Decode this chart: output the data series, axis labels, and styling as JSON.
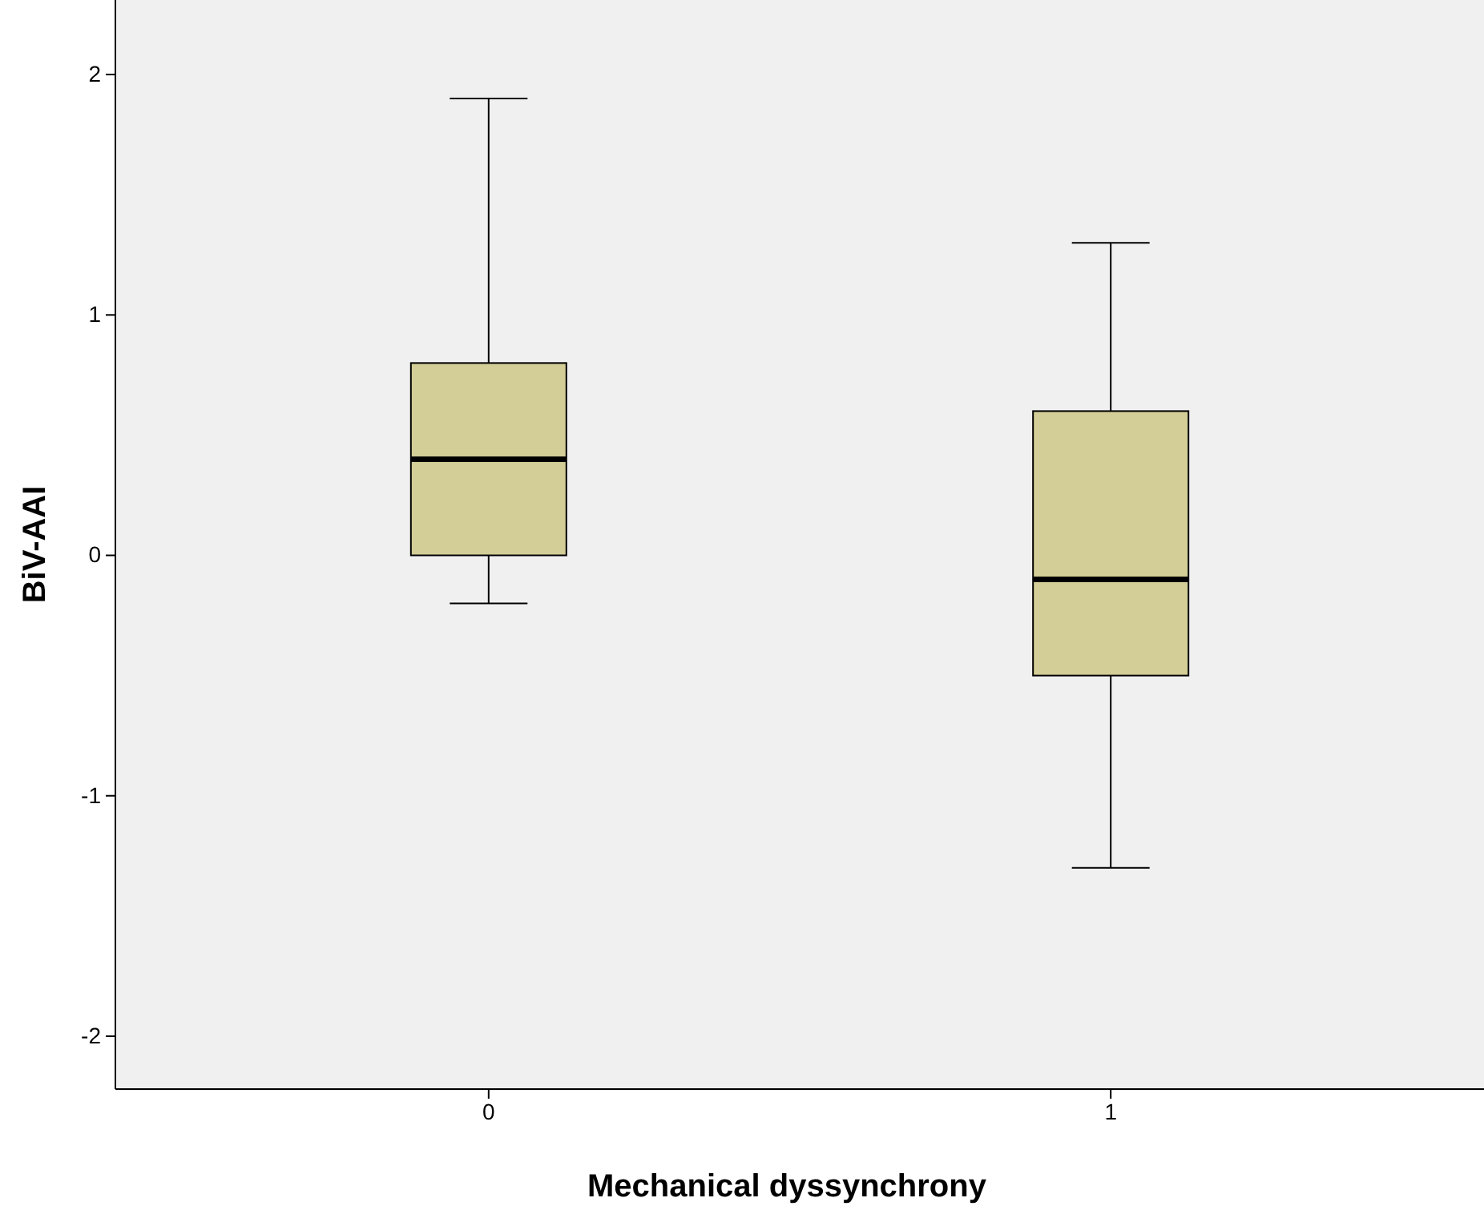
{
  "chart_data": {
    "type": "box",
    "xlabel": "Mechanical dyssynchrony",
    "ylabel": "BiV-AAI",
    "categories": [
      "0",
      "1"
    ],
    "boxes": [
      {
        "low": -0.2,
        "q1": 0,
        "median": 0.4,
        "q3": 0.8,
        "high": 1.9
      },
      {
        "low": -1.3,
        "q1": -0.5,
        "median": -0.1,
        "q3": 0.6,
        "high": 1.3
      }
    ],
    "color": "#d3ce97",
    "ylim": [
      -2.22,
      2.31
    ],
    "yticks": [
      -2,
      -1,
      0,
      1,
      2
    ],
    "grid": false
  }
}
